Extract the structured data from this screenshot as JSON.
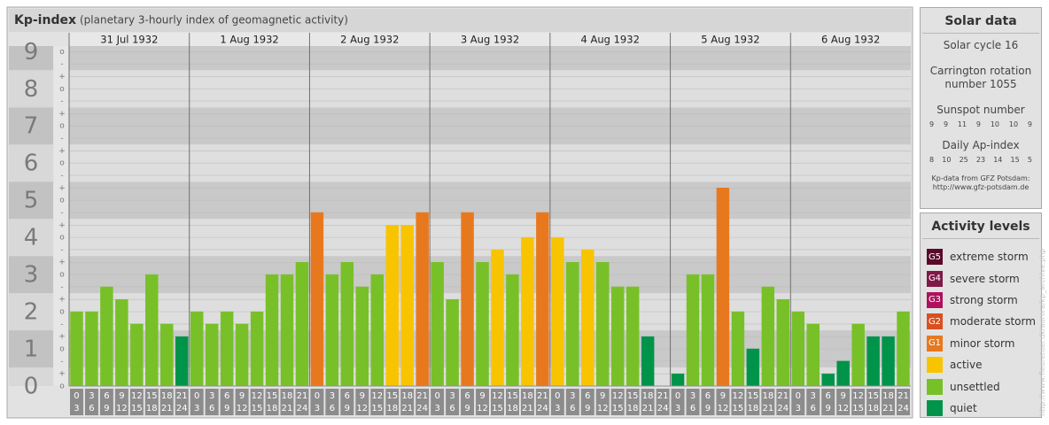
{
  "chart_data": {
    "type": "bar",
    "title": "Kp-index",
    "subtitle": "(planetary 3-hourly index of geomagnetic activity)",
    "categories": [
      "31 Jul 1932",
      "1 Aug 1932",
      "2 Aug 1932",
      "3 Aug 1932",
      "4 Aug 1932",
      "5 Aug 1932",
      "6 Aug 1932"
    ],
    "intervals": [
      [
        0,
        3
      ],
      [
        3,
        6
      ],
      [
        6,
        9
      ],
      [
        9,
        12
      ],
      [
        12,
        15
      ],
      [
        15,
        18
      ],
      [
        18,
        21
      ],
      [
        21,
        24
      ]
    ],
    "values": [
      [
        2,
        2,
        2.67,
        2.33,
        1.67,
        3,
        1.67,
        1.33
      ],
      [
        2,
        1.67,
        2,
        1.67,
        2,
        3,
        3,
        3.33
      ],
      [
        4.67,
        3,
        3.33,
        2.67,
        3,
        4.33,
        4.33,
        4.67
      ],
      [
        3.33,
        2.33,
        4.67,
        3.33,
        3.67,
        3,
        4,
        4.67
      ],
      [
        4,
        3.33,
        3.67,
        3.33,
        2.67,
        2.67,
        1.33,
        0
      ],
      [
        0.33,
        3,
        3,
        5.33,
        2,
        1,
        2.67,
        2.33
      ],
      [
        2,
        1.67,
        0.33,
        0.67,
        1.67,
        1.33,
        1.33,
        2
      ]
    ],
    "colors": [
      [
        "#78c028",
        "#78c028",
        "#78c028",
        "#78c028",
        "#78c028",
        "#78c028",
        "#78c028",
        "#00944a"
      ],
      [
        "#78c028",
        "#78c028",
        "#78c028",
        "#78c028",
        "#78c028",
        "#78c028",
        "#78c028",
        "#78c028"
      ],
      [
        "#e8781e",
        "#78c028",
        "#78c028",
        "#78c028",
        "#78c028",
        "#f8c400",
        "#f8c400",
        "#e8781e"
      ],
      [
        "#78c028",
        "#78c028",
        "#e8781e",
        "#78c028",
        "#f8c400",
        "#78c028",
        "#f8c400",
        "#e8781e"
      ],
      [
        "#f8c400",
        "#78c028",
        "#f8c400",
        "#78c028",
        "#78c028",
        "#78c028",
        "#00944a",
        "#00944a"
      ],
      [
        "#00944a",
        "#78c028",
        "#78c028",
        "#e8781e",
        "#78c028",
        "#00944a",
        "#78c028",
        "#78c028"
      ],
      [
        "#78c028",
        "#78c028",
        "#00944a",
        "#00944a",
        "#78c028",
        "#00944a",
        "#00944a",
        "#78c028"
      ]
    ],
    "ylim": [
      0,
      9.15
    ],
    "yticks": [
      0,
      1,
      2,
      3,
      4,
      5,
      6,
      7,
      8,
      9
    ],
    "minor_yticks": [
      {
        "value": 0,
        "label": "o"
      },
      {
        "value": 0.33,
        "label": "+"
      },
      {
        "value": 0.67,
        "label": "-"
      },
      {
        "value": 1,
        "label": "o"
      },
      {
        "value": 1.33,
        "label": "+"
      },
      {
        "value": 1.67,
        "label": "-"
      },
      {
        "value": 2,
        "label": "o"
      },
      {
        "value": 2.33,
        "label": "+"
      },
      {
        "value": 2.67,
        "label": "-"
      },
      {
        "value": 3,
        "label": "o"
      },
      {
        "value": 3.33,
        "label": "+"
      },
      {
        "value": 3.67,
        "label": "-"
      },
      {
        "value": 4,
        "label": "o"
      },
      {
        "value": 4.33,
        "label": "+"
      },
      {
        "value": 4.67,
        "label": "-"
      },
      {
        "value": 5,
        "label": "o"
      },
      {
        "value": 5.33,
        "label": "+"
      },
      {
        "value": 5.67,
        "label": "-"
      },
      {
        "value": 6,
        "label": "o"
      },
      {
        "value": 6.33,
        "label": "+"
      },
      {
        "value": 6.67,
        "label": "-"
      },
      {
        "value": 7,
        "label": "o"
      },
      {
        "value": 7.33,
        "label": "+"
      },
      {
        "value": 7.67,
        "label": "-"
      },
      {
        "value": 8,
        "label": "o"
      },
      {
        "value": 8.33,
        "label": "+"
      },
      {
        "value": 8.67,
        "label": "-"
      },
      {
        "value": 9,
        "label": "o"
      }
    ],
    "grid": true
  },
  "solar_data": {
    "title": "Solar data",
    "solar_cycle": "Solar cycle 16",
    "carrington": "Carrington rotation number 1055",
    "sunspot_label": "Sunspot number",
    "sunspot_numbers": [
      9,
      9,
      11,
      9,
      10,
      10,
      9
    ],
    "ap_label": "Daily Ap-index",
    "ap_values": [
      8,
      10,
      25,
      23,
      14,
      15,
      5
    ],
    "source": "Kp-data from GFZ Potsdam:",
    "source_url": "http://www.gfz-potsdam.de"
  },
  "activity_levels": {
    "title": "Activity levels",
    "levels": [
      {
        "badge": "G5",
        "label": "extreme storm",
        "color": "#5a0a28"
      },
      {
        "badge": "G4",
        "label": "severe storm",
        "color": "#801848"
      },
      {
        "badge": "G3",
        "label": "strong storm",
        "color": "#b0105c"
      },
      {
        "badge": "G2",
        "label": "moderate storm",
        "color": "#d9501e"
      },
      {
        "badge": "G1",
        "label": "minor storm",
        "color": "#e8781e"
      },
      {
        "label": "active",
        "color": "#f8c400"
      },
      {
        "label": "unsettled",
        "color": "#78c028"
      },
      {
        "label": "quiet",
        "color": "#00944a"
      }
    ]
  },
  "watermark": "http://www.fleuretuer.dk/aurora/kp_archive.php"
}
